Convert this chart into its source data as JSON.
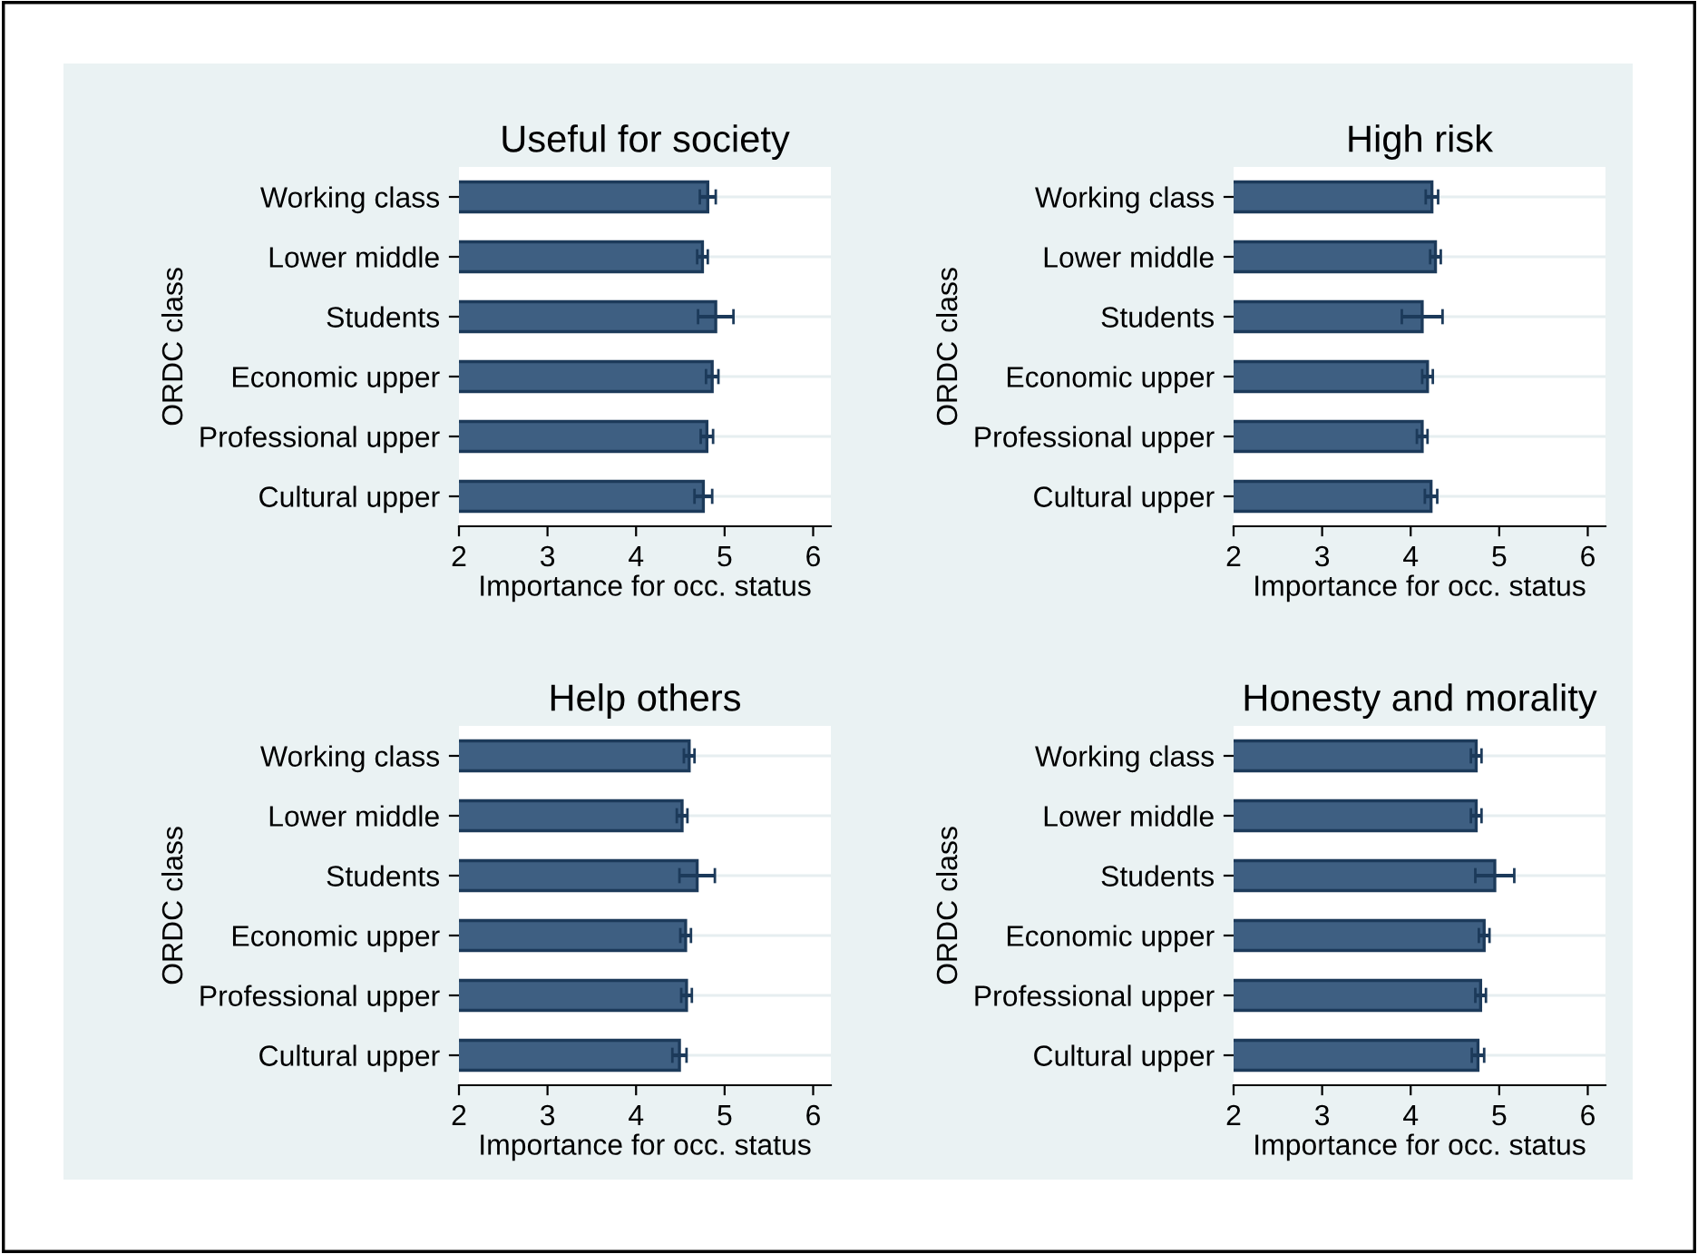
{
  "chart_data": [
    {
      "type": "bar",
      "orientation": "horizontal",
      "title": "Useful for society",
      "xlabel": "Importance for occ. status",
      "ylabel": "ORDC class",
      "categories": [
        "Working class",
        "Lower middle",
        "Students",
        "Economic upper",
        "Professional upper",
        "Cultural upper"
      ],
      "values": [
        4.81,
        4.75,
        4.9,
        4.86,
        4.8,
        4.76
      ],
      "errors": [
        0.09,
        0.06,
        0.2,
        0.07,
        0.07,
        0.1
      ],
      "color": "#3e5f82",
      "xlim": [
        2,
        6.2
      ],
      "xticks": [
        2,
        3,
        4,
        5,
        6
      ],
      "grid": "y"
    },
    {
      "type": "bar",
      "orientation": "horizontal",
      "title": "High risk",
      "xlabel": "Importance for occ. status",
      "ylabel": "ORDC class",
      "categories": [
        "Working class",
        "Lower middle",
        "Students",
        "Economic upper",
        "Professional upper",
        "Cultural upper"
      ],
      "values": [
        4.24,
        4.28,
        4.13,
        4.19,
        4.13,
        4.23
      ],
      "errors": [
        0.07,
        0.06,
        0.23,
        0.06,
        0.06,
        0.07
      ],
      "color": "#3e5f82",
      "xlim": [
        2,
        6.2
      ],
      "xticks": [
        2,
        3,
        4,
        5,
        6
      ],
      "grid": "y"
    },
    {
      "type": "bar",
      "orientation": "horizontal",
      "title": "Help others",
      "xlabel": "Importance for occ. status",
      "ylabel": "ORDC class",
      "categories": [
        "Working class",
        "Lower middle",
        "Students",
        "Economic upper",
        "Professional upper",
        "Cultural upper"
      ],
      "values": [
        4.6,
        4.52,
        4.69,
        4.56,
        4.57,
        4.49
      ],
      "errors": [
        0.06,
        0.06,
        0.2,
        0.06,
        0.06,
        0.08
      ],
      "color": "#3e5f82",
      "xlim": [
        2,
        6.2
      ],
      "xticks": [
        2,
        3,
        4,
        5,
        6
      ],
      "grid": "y"
    },
    {
      "type": "bar",
      "orientation": "horizontal",
      "title": "Honesty and morality",
      "xlabel": "Importance for occ. status",
      "ylabel": "ORDC class",
      "categories": [
        "Working class",
        "Lower middle",
        "Students",
        "Economic upper",
        "Professional upper",
        "Cultural upper"
      ],
      "values": [
        4.74,
        4.74,
        4.95,
        4.83,
        4.79,
        4.76
      ],
      "errors": [
        0.06,
        0.06,
        0.22,
        0.06,
        0.06,
        0.07
      ],
      "color": "#3e5f82",
      "xlim": [
        2,
        6.2
      ],
      "xticks": [
        2,
        3,
        4,
        5,
        6
      ],
      "grid": "y"
    }
  ]
}
